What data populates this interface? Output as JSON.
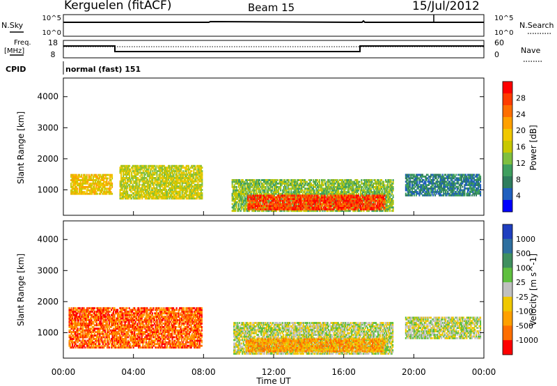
{
  "header": {
    "station": "Kerguelen (fitACF)",
    "beam": "Beam 15",
    "date": "15/Jul/2012"
  },
  "noise_panel": {
    "left_label": "N.Sky",
    "right_label": "N.Search",
    "left_ticks": [
      "10^5",
      "10^0"
    ],
    "right_ticks": [
      "10^5",
      "10^0"
    ]
  },
  "freq_panel": {
    "left_label_top": "Freq.",
    "left_label_bottom": "[MHz]",
    "left_ticks": [
      "18",
      "8"
    ],
    "right_label": "Nave",
    "right_ticks": [
      "60",
      "0"
    ],
    "cpid_label": "CPID",
    "cpid_value": "normal (fast) 151"
  },
  "chart_data": [
    {
      "type": "heatmap",
      "title": "Power",
      "ylabel": "Slant Range [km]",
      "xlabel": "",
      "ylim": [
        180,
        4600
      ],
      "yticks": [
        "1000",
        "2000",
        "3000",
        "4000"
      ],
      "x_tick_labels": [
        "00:00",
        "04:00",
        "08:00",
        "12:00",
        "16:00",
        "20:00",
        "00:00"
      ],
      "xlim_hours": [
        0,
        24
      ],
      "colorbar": {
        "label": "Power [dB]",
        "ticks": [
          "28",
          "24",
          "20",
          "16",
          "12",
          "8",
          "4"
        ],
        "colors": [
          "#ff0000",
          "#ff3c00",
          "#ff6e00",
          "#ffa000",
          "#f0c800",
          "#c8c800",
          "#7fbf3f",
          "#3f9f5f",
          "#2e7d5e",
          "#1f5fbf",
          "#0000ff"
        ]
      },
      "regions": [
        {
          "t0": 0.4,
          "t1": 2.8,
          "r0": 850,
          "r1": 1500,
          "c": 4
        },
        {
          "t0": 3.2,
          "t1": 7.9,
          "r0": 700,
          "r1": 1800,
          "c": 5
        },
        {
          "t0": 9.6,
          "t1": 18.8,
          "r0": 300,
          "r1": 1300,
          "c": 6
        },
        {
          "t0": 10.5,
          "t1": 18.3,
          "r0": 350,
          "r1": 800,
          "c": 1
        },
        {
          "t0": 19.5,
          "t1": 23.8,
          "r0": 800,
          "r1": 1500,
          "c": 8
        }
      ]
    },
    {
      "type": "heatmap",
      "title": "Velocity",
      "ylabel": "Slant Range [km]",
      "xlabel": "Time UT",
      "ylim": [
        180,
        4600
      ],
      "yticks": [
        "1000",
        "2000",
        "3000",
        "4000"
      ],
      "x_tick_labels": [
        "00:00",
        "04:00",
        "08:00",
        "12:00",
        "16:00",
        "20:00",
        "00:00"
      ],
      "xlim_hours": [
        0,
        24
      ],
      "colorbar": {
        "label": "Velocity [m s^-1]",
        "ticks": [
          "1000",
          "500",
          "100",
          "25",
          "-25",
          "-100",
          "-500",
          "-1000"
        ],
        "colors": [
          "#1f3fbf",
          "#2e6f9f",
          "#3f8f5f",
          "#5fbf3f",
          "#c0c0c0",
          "#f0c800",
          "#ffa000",
          "#ff6e00",
          "#ff0000"
        ]
      },
      "regions": [
        {
          "t0": 0.3,
          "t1": 7.9,
          "r0": 500,
          "r1": 1800,
          "c": 7
        },
        {
          "t0": 9.7,
          "t1": 18.8,
          "r0": 300,
          "r1": 1300,
          "c": 4
        },
        {
          "t0": 10.4,
          "t1": 18.3,
          "r0": 380,
          "r1": 800,
          "c": 6
        },
        {
          "t0": 19.5,
          "t1": 23.8,
          "r0": 800,
          "r1": 1500,
          "c": 4
        }
      ]
    }
  ]
}
